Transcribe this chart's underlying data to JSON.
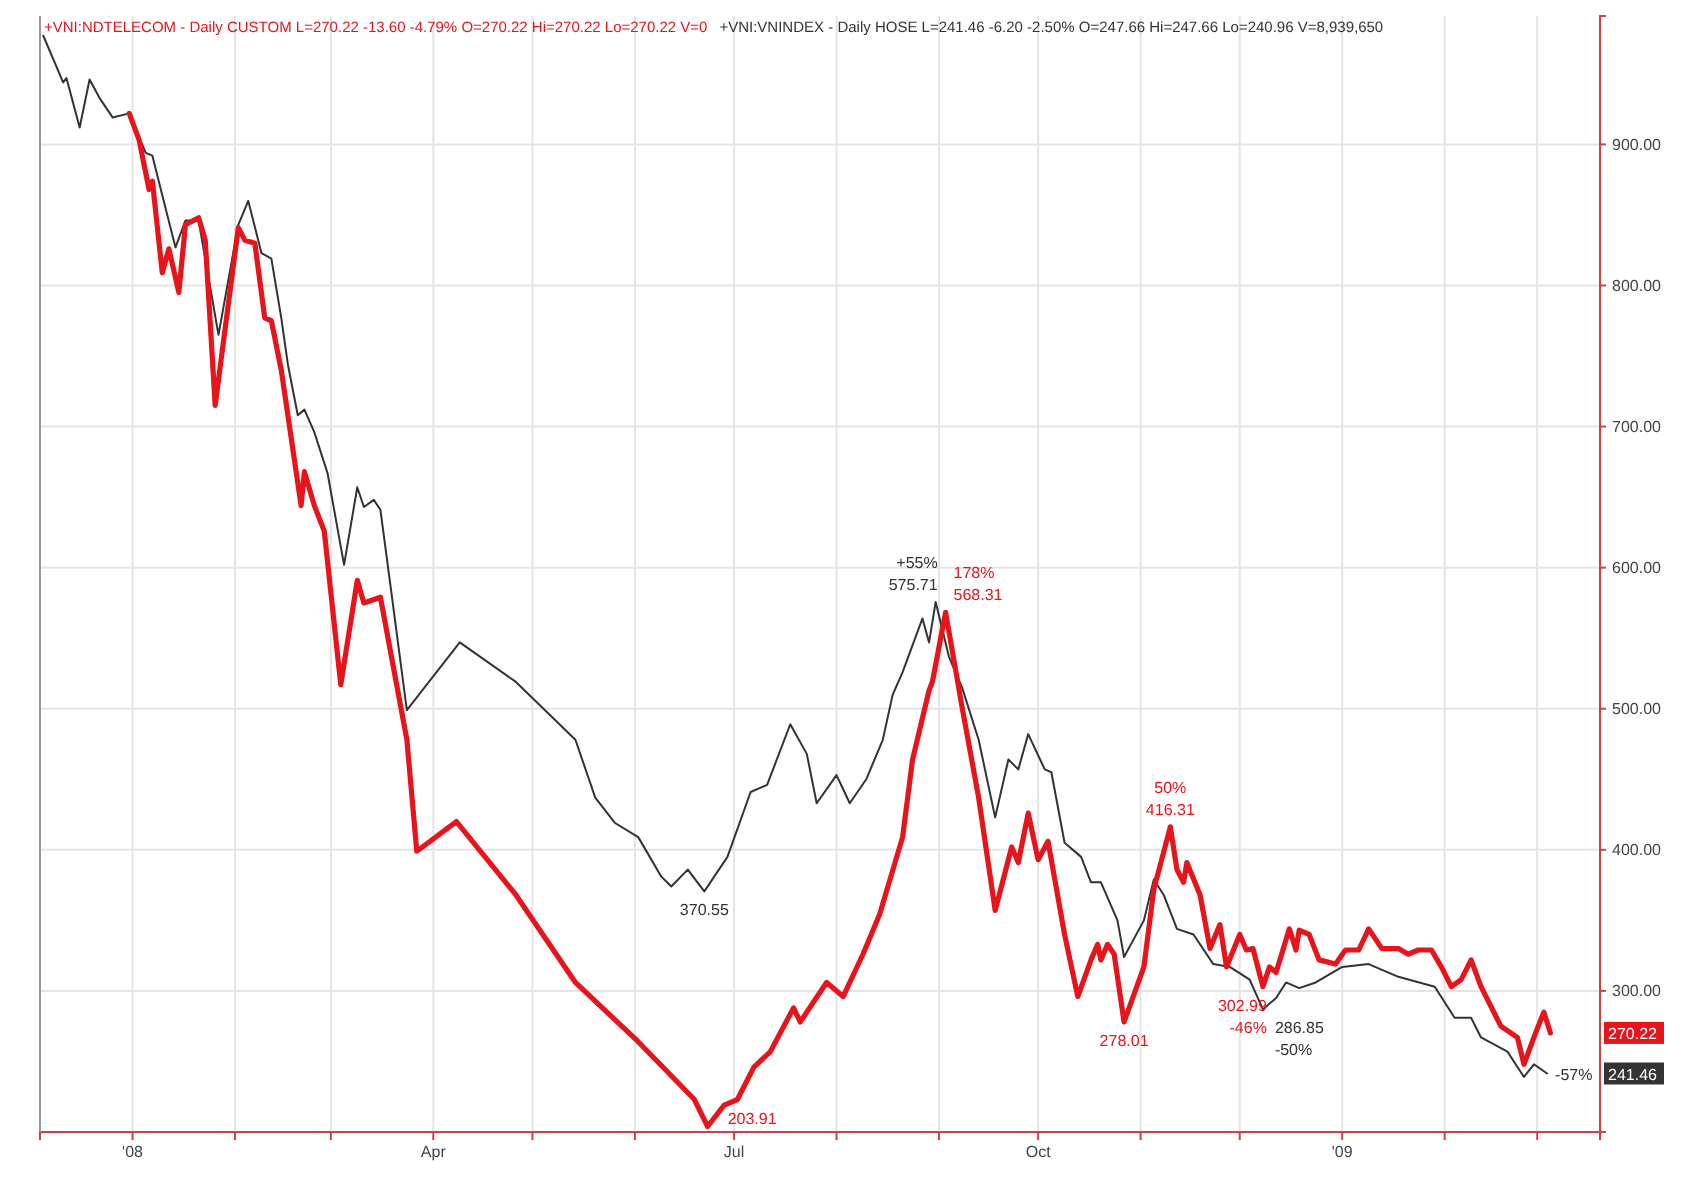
{
  "chart_data": {
    "type": "line",
    "title": "+VNI:NDTELECOM - Daily  CUSTOM  L=270.22  -13.60  -4.79%  O=270.22  Hi=270.22  Lo=270.22  V=0",
    "subtitle": "+VNI:VNINDEX - Daily  HOSE  L=241.46  -6.20  -2.50%  O=247.66  Hi=247.66  Lo=240.96  V=8,939,650",
    "series": [
      {
        "color": "#333333",
        "x": [
          "2007-12-05",
          "2007-12-11",
          "2007-12-12",
          "2007-12-16",
          "2007-12-19",
          "2007-12-22",
          "2007-12-26",
          "2007-12-31",
          "2008-01-05",
          "2008-01-07",
          "2008-01-10",
          "2008-01-14",
          "2008-01-17",
          "2008-01-21",
          "2008-01-27",
          "2008-02-02",
          "2008-02-05",
          "2008-02-09",
          "2008-02-12",
          "2008-02-15",
          "2008-02-17",
          "2008-02-20",
          "2008-02-22",
          "2008-02-25",
          "2008-02-29",
          "2008-03-05",
          "2008-03-09",
          "2008-03-11",
          "2008-03-14",
          "2008-03-16",
          "2008-03-19",
          "2008-03-24",
          "2008-04-09",
          "2008-04-26",
          "2008-05-14",
          "2008-05-20",
          "2008-05-26",
          "2008-06-02",
          "2008-06-09",
          "2008-06-12",
          "2008-06-17",
          "2008-06-22",
          "2008-06-29",
          "2008-07-06",
          "2008-07-11",
          "2008-07-18",
          "2008-07-23",
          "2008-07-26",
          "2008-08-01",
          "2008-08-05",
          "2008-08-10",
          "2008-08-15",
          "2008-08-18",
          "2008-08-21",
          "2008-08-27",
          "2008-08-29",
          "2008-08-31",
          "2008-09-04",
          "2008-09-08",
          "2008-09-13",
          "2008-09-18",
          "2008-09-22",
          "2008-09-25",
          "2008-09-28",
          "2008-10-03",
          "2008-10-05",
          "2008-10-09",
          "2008-10-14",
          "2008-10-17",
          "2008-10-20",
          "2008-10-25",
          "2008-10-27",
          "2008-11-02",
          "2008-11-05",
          "2008-11-08",
          "2008-11-12",
          "2008-11-17",
          "2008-11-23",
          "2008-11-28",
          "2008-12-04",
          "2008-12-08",
          "2008-12-12",
          "2008-12-15",
          "2008-12-19",
          "2008-12-24",
          "2009-01-01",
          "2009-01-09",
          "2009-01-18",
          "2009-01-29",
          "2009-02-04",
          "2009-02-09",
          "2009-02-12",
          "2009-02-20",
          "2009-02-25",
          "2009-02-28",
          "2009-03-04"
        ],
        "values": [
          977,
          944,
          947,
          912,
          946,
          933,
          919,
          922,
          894,
          892,
          864,
          827,
          846,
          846,
          765,
          843,
          860,
          823,
          819,
          777,
          744,
          708,
          712,
          696,
          667,
          602,
          657,
          643,
          648,
          641,
          588,
          499,
          547,
          519,
          478,
          437,
          419,
          409,
          381,
          374,
          386,
          370.55,
          395,
          441,
          446,
          489,
          468,
          433,
          453,
          433,
          450,
          478,
          510,
          526,
          564,
          547,
          575.71,
          537,
          515,
          478,
          423,
          464,
          457,
          482,
          457,
          455,
          405,
          395,
          377,
          377,
          350,
          324,
          350,
          379,
          368,
          344,
          340,
          319,
          317,
          308,
          286.85,
          295,
          306,
          302,
          306,
          317,
          319,
          310,
          303,
          281,
          281,
          267,
          257,
          239,
          248,
          241.46
        ]
      },
      {
        "color": "#e8141b",
        "x": [
          "2007-12-31",
          "2008-01-03",
          "2008-01-06",
          "2008-01-07",
          "2008-01-10",
          "2008-01-12",
          "2008-01-15",
          "2008-01-17",
          "2008-01-21",
          "2008-01-23",
          "2008-01-26",
          "2008-02-02",
          "2008-02-04",
          "2008-02-07",
          "2008-02-10",
          "2008-02-12",
          "2008-02-15",
          "2008-02-21",
          "2008-02-22",
          "2008-02-25",
          "2008-02-28",
          "2008-03-04",
          "2008-03-09",
          "2008-03-11",
          "2008-03-16",
          "2008-03-24",
          "2008-03-27",
          "2008-04-08",
          "2008-04-26",
          "2008-05-14",
          "2008-06-02",
          "2008-06-19",
          "2008-06-23",
          "2008-06-28",
          "2008-07-02",
          "2008-07-07",
          "2008-07-12",
          "2008-07-19",
          "2008-07-21",
          "2008-07-29",
          "2008-08-03",
          "2008-08-09",
          "2008-08-14",
          "2008-08-21",
          "2008-08-24",
          "2008-08-29",
          "2008-08-30",
          "2008-09-03",
          "2008-09-08",
          "2008-09-13",
          "2008-09-18",
          "2008-09-23",
          "2008-09-25",
          "2008-09-28",
          "2008-10-01",
          "2008-10-04",
          "2008-10-09",
          "2008-10-13",
          "2008-10-17",
          "2008-10-19",
          "2008-10-20",
          "2008-10-22",
          "2008-10-24",
          "2008-10-27",
          "2008-11-02",
          "2008-11-05",
          "2008-11-10",
          "2008-11-12",
          "2008-11-14",
          "2008-11-15",
          "2008-11-19",
          "2008-11-22",
          "2008-11-25",
          "2008-11-27",
          "2008-12-01",
          "2008-12-03",
          "2008-12-05",
          "2008-12-08",
          "2008-12-10",
          "2008-12-12",
          "2008-12-16",
          "2008-12-18",
          "2008-12-19",
          "2008-12-22",
          "2008-12-25",
          "2008-12-30",
          "2009-01-02",
          "2009-01-06",
          "2009-01-09",
          "2009-01-13",
          "2009-01-18",
          "2009-01-21",
          "2009-01-24",
          "2009-01-28",
          "2009-01-31",
          "2009-02-03",
          "2009-02-06",
          "2009-02-09",
          "2009-02-12",
          "2009-02-18",
          "2009-02-23",
          "2009-02-25",
          "2009-02-28",
          "2009-03-03",
          "2009-03-05"
        ],
        "values": [
          922,
          903,
          868,
          874,
          809,
          826,
          795,
          843,
          848,
          832,
          715,
          841,
          832,
          830,
          777,
          775,
          740,
          644,
          668,
          644,
          626,
          517,
          591,
          575,
          579,
          478,
          399,
          420,
          368,
          306,
          264,
          223,
          203.91,
          219,
          223,
          246,
          257,
          288,
          278,
          306,
          296,
          326,
          354,
          409,
          464,
          513,
          519,
          568.31,
          501,
          437,
          357,
          402,
          391,
          426,
          393,
          406,
          340,
          296,
          322,
          333,
          322,
          333,
          326,
          278.01,
          317,
          372,
          416.31,
          386,
          377,
          391,
          368,
          330,
          347,
          317,
          340,
          329,
          330,
          302.99,
          317,
          313,
          344,
          329,
          343,
          340,
          322,
          319,
          329,
          329,
          344,
          330,
          330,
          326,
          329,
          329,
          317,
          303,
          308,
          322,
          303,
          275,
          267,
          248,
          267,
          285,
          270.22
        ]
      }
    ],
    "xlim": [
      "2007-12-04",
      "2009-03-20"
    ],
    "xticks": [
      {
        "value": "2008-01-01",
        "label": "'08"
      },
      {
        "value": "2008-02-01",
        "label": null
      },
      {
        "value": "2008-03-01",
        "label": null
      },
      {
        "value": "2008-04-01",
        "label": "Apr"
      },
      {
        "value": "2008-05-01",
        "label": null
      },
      {
        "value": "2008-06-01",
        "label": null
      },
      {
        "value": "2008-07-01",
        "label": "Jul"
      },
      {
        "value": "2008-08-01",
        "label": null
      },
      {
        "value": "2008-09-01",
        "label": null
      },
      {
        "value": "2008-10-01",
        "label": "Oct"
      },
      {
        "value": "2008-11-01",
        "label": null
      },
      {
        "value": "2008-12-01",
        "label": null
      },
      {
        "value": "2009-01-01",
        "label": "'09"
      },
      {
        "value": "2009-02-01",
        "label": null
      },
      {
        "value": "2009-03-01",
        "label": null
      }
    ],
    "ylim": [
      200,
      991
    ],
    "yticks": [
      {
        "value": 300,
        "label": "300.00"
      },
      {
        "value": 400,
        "label": "400.00"
      },
      {
        "value": 500,
        "label": "500.00"
      },
      {
        "value": 600,
        "label": "600.00"
      },
      {
        "value": 700,
        "label": "700.00"
      },
      {
        "value": 800,
        "label": "800.00"
      },
      {
        "value": 900,
        "label": "900.00"
      }
    ],
    "grid": true,
    "annotations": [
      {
        "text": "575.71",
        "x": "2008-08-31",
        "y": 575.71
      },
      {
        "text": "+55%",
        "x": "2008-08-31",
        "y": 575.71
      },
      {
        "text": "568.31",
        "x": "2008-09-03",
        "y": 568.31
      },
      {
        "text": "178%",
        "x": "2008-09-03",
        "y": 568.31
      },
      {
        "text": "370.55",
        "x": "2008-06-22",
        "y": 370.55
      },
      {
        "text": "203.91",
        "x": "2008-06-23",
        "y": 203.91
      },
      {
        "text": "278.01",
        "x": "2008-10-27",
        "y": 278.01
      },
      {
        "text": "416.31",
        "x": "2008-11-10",
        "y": 416.31
      },
      {
        "text": "50%",
        "x": "2008-11-10",
        "y": 416.31
      },
      {
        "text": "302.99",
        "x": "2008-12-08",
        "y": 302.99
      },
      {
        "text": "-46%",
        "x": "2008-12-08",
        "y": 302.99
      },
      {
        "text": "286.85",
        "x": "2008-12-08",
        "y": 286.85
      },
      {
        "text": "-50%",
        "x": "2008-12-08",
        "y": 286.85
      },
      {
        "text": "-57%",
        "x": "2009-03-04",
        "y": 241.46
      },
      {
        "text": "270.22",
        "y": 270.22
      },
      {
        "text": "241.46",
        "y": 241.46
      }
    ]
  }
}
